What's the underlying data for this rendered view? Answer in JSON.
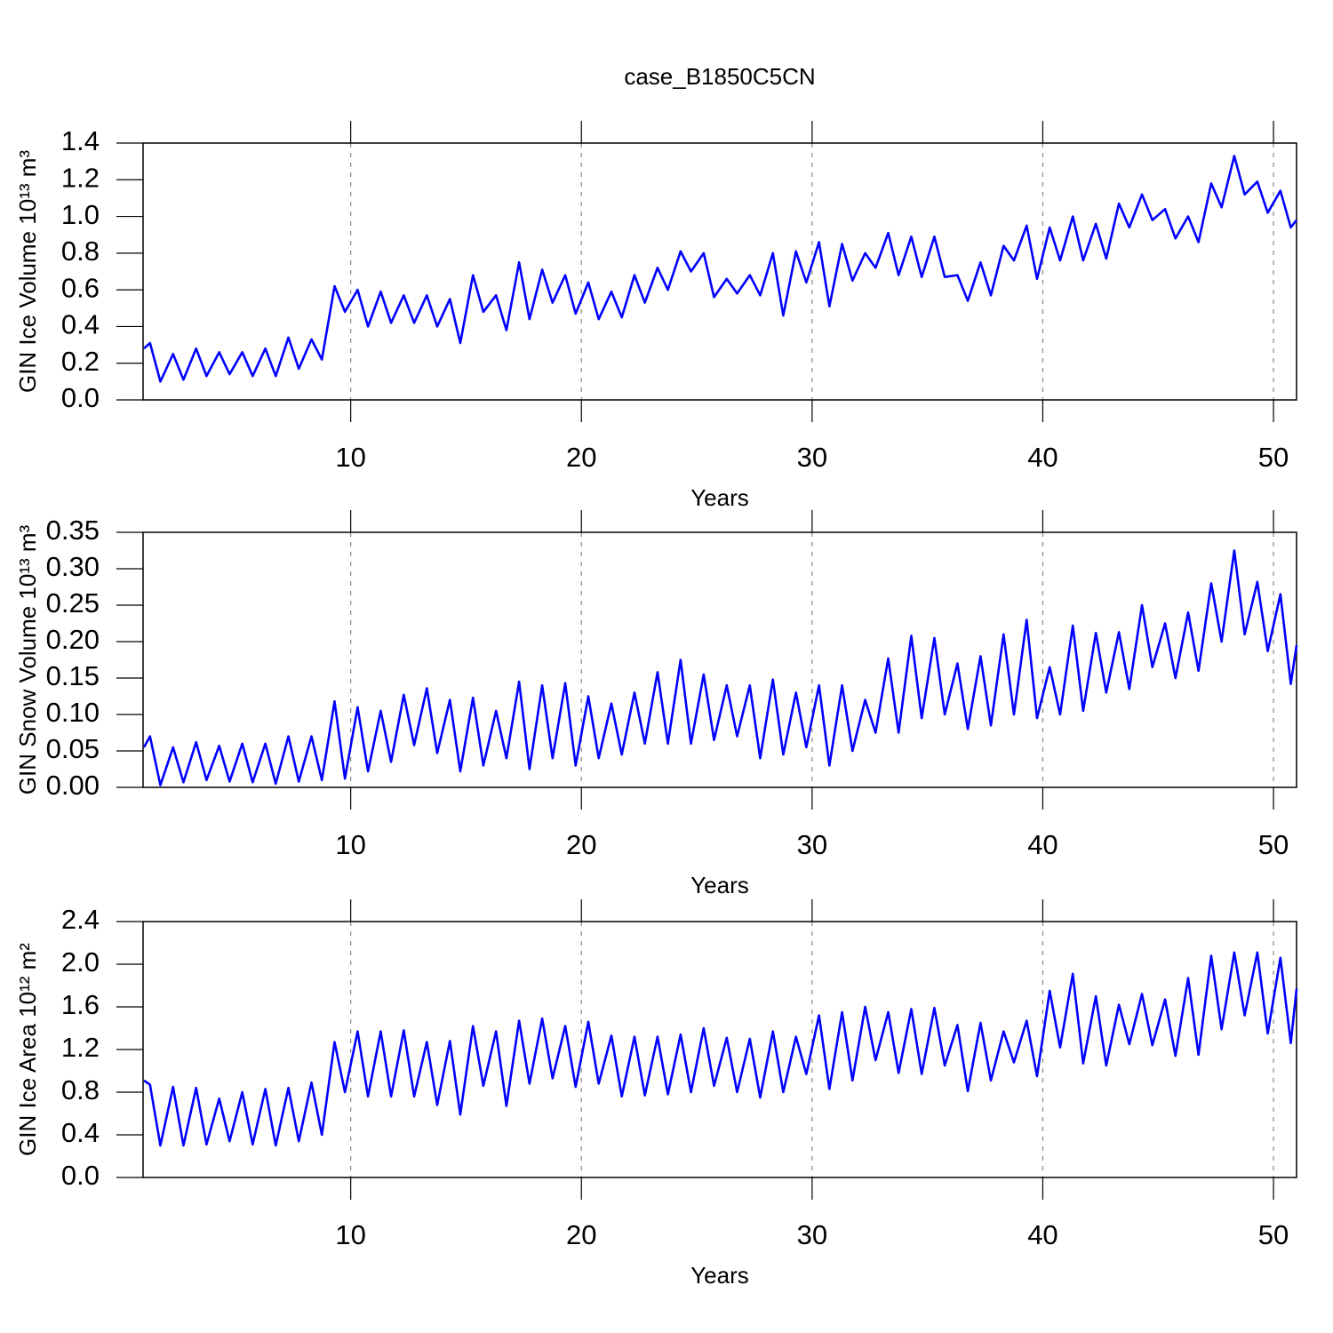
{
  "chart_data": [
    {
      "type": "line",
      "title": "case_B1850C5CN",
      "xlabel": "Years",
      "ylabel": "GIN Ice Volume 10¹³ m³",
      "grid": "x",
      "xlim": [
        1,
        51
      ],
      "xticks": [
        10,
        20,
        30,
        40,
        50
      ],
      "ylim": [
        0,
        1.4
      ],
      "yticks": [
        {
          "value": 0,
          "label": "0.0"
        },
        0.2,
        0.4,
        0.6,
        0.8,
        {
          "value": 1,
          "label": "1.0"
        },
        1.2,
        1.4
      ],
      "x": [
        1.04,
        1.3,
        1.75,
        2.3,
        2.75,
        3.3,
        3.75,
        4.3,
        4.75,
        5.3,
        5.75,
        6.3,
        6.75,
        7.3,
        7.75,
        8.3,
        8.75,
        9.3,
        9.75,
        10.3,
        10.75,
        11.3,
        11.75,
        12.3,
        12.75,
        13.3,
        13.75,
        14.3,
        14.75,
        15.3,
        15.75,
        16.3,
        16.75,
        17.3,
        17.75,
        18.3,
        18.75,
        19.3,
        19.75,
        20.3,
        20.75,
        21.3,
        21.75,
        22.3,
        22.75,
        23.3,
        23.75,
        24.3,
        24.75,
        25.3,
        25.75,
        26.3,
        26.75,
        27.3,
        27.75,
        28.3,
        28.75,
        29.3,
        29.75,
        30.3,
        30.75,
        31.3,
        31.75,
        32.3,
        32.75,
        33.3,
        33.75,
        34.3,
        34.75,
        35.3,
        35.75,
        36.3,
        36.75,
        37.3,
        37.75,
        38.3,
        38.75,
        39.3,
        39.75,
        40.3,
        40.75,
        41.3,
        41.75,
        42.3,
        42.75,
        43.3,
        43.75,
        44.3,
        44.75,
        45.3,
        45.75,
        46.3,
        46.75,
        47.3,
        47.75,
        48.3,
        48.75,
        49.3,
        49.75,
        50.3,
        50.75,
        51
      ],
      "series": [
        {
          "color": "#0000ff",
          "values": [
            0.28,
            0.31,
            0.1,
            0.25,
            0.11,
            0.28,
            0.13,
            0.26,
            0.14,
            0.26,
            0.13,
            0.28,
            0.13,
            0.34,
            0.17,
            0.33,
            0.22,
            0.62,
            0.48,
            0.6,
            0.4,
            0.59,
            0.42,
            0.57,
            0.42,
            0.57,
            0.4,
            0.55,
            0.31,
            0.68,
            0.48,
            0.57,
            0.38,
            0.75,
            0.44,
            0.71,
            0.53,
            0.68,
            0.47,
            0.64,
            0.44,
            0.59,
            0.45,
            0.68,
            0.53,
            0.72,
            0.6,
            0.81,
            0.7,
            0.8,
            0.56,
            0.66,
            0.58,
            0.68,
            0.57,
            0.8,
            0.46,
            0.81,
            0.64,
            0.86,
            0.51,
            0.85,
            0.65,
            0.8,
            0.72,
            0.91,
            0.68,
            0.89,
            0.67,
            0.89,
            0.67,
            0.68,
            0.54,
            0.75,
            0.57,
            0.84,
            0.76,
            0.95,
            0.66,
            0.94,
            0.76,
            1.0,
            0.76,
            0.96,
            0.77,
            1.07,
            0.94,
            1.12,
            0.98,
            1.04,
            0.88,
            1.0,
            0.86,
            1.18,
            1.05,
            1.33,
            1.12,
            1.19,
            1.02,
            1.14,
            0.94,
            0.98
          ]
        }
      ]
    },
    {
      "type": "line",
      "xlabel": "Years",
      "ylabel": "GIN Snow Volume 10¹³ m³",
      "grid": "x",
      "xlim": [
        1,
        51
      ],
      "xticks": [
        10,
        20,
        30,
        40,
        50
      ],
      "ylim": [
        0,
        0.35
      ],
      "yticks": [
        {
          "value": 0,
          "label": "0.00"
        },
        {
          "value": 0.05,
          "label": "0.05"
        },
        {
          "value": 0.1,
          "label": "0.10"
        },
        {
          "value": 0.15,
          "label": "0.15"
        },
        {
          "value": 0.2,
          "label": "0.20"
        },
        {
          "value": 0.25,
          "label": "0.25"
        },
        {
          "value": 0.3,
          "label": "0.30"
        },
        {
          "value": 0.35,
          "label": "0.35"
        }
      ],
      "x": [
        1.04,
        1.3,
        1.75,
        2.3,
        2.75,
        3.3,
        3.75,
        4.3,
        4.75,
        5.3,
        5.75,
        6.3,
        6.75,
        7.3,
        7.75,
        8.3,
        8.75,
        9.3,
        9.75,
        10.3,
        10.75,
        11.3,
        11.75,
        12.3,
        12.75,
        13.3,
        13.75,
        14.3,
        14.75,
        15.3,
        15.75,
        16.3,
        16.75,
        17.3,
        17.75,
        18.3,
        18.75,
        19.3,
        19.75,
        20.3,
        20.75,
        21.3,
        21.75,
        22.3,
        22.75,
        23.3,
        23.75,
        24.3,
        24.75,
        25.3,
        25.75,
        26.3,
        26.75,
        27.3,
        27.75,
        28.3,
        28.75,
        29.3,
        29.75,
        30.3,
        30.75,
        31.3,
        31.75,
        32.3,
        32.75,
        33.3,
        33.75,
        34.3,
        34.75,
        35.3,
        35.75,
        36.3,
        36.75,
        37.3,
        37.75,
        38.3,
        38.75,
        39.3,
        39.75,
        40.3,
        40.75,
        41.3,
        41.75,
        42.3,
        42.75,
        43.3,
        43.75,
        44.3,
        44.75,
        45.3,
        45.75,
        46.3,
        46.75,
        47.3,
        47.75,
        48.3,
        48.75,
        49.3,
        49.75,
        50.3,
        50.75,
        51
      ],
      "series": [
        {
          "color": "#0000ff",
          "values": [
            0.055,
            0.07,
            0.003,
            0.055,
            0.007,
            0.062,
            0.01,
            0.057,
            0.008,
            0.06,
            0.007,
            0.06,
            0.005,
            0.07,
            0.008,
            0.07,
            0.01,
            0.118,
            0.012,
            0.11,
            0.022,
            0.105,
            0.035,
            0.127,
            0.058,
            0.136,
            0.047,
            0.12,
            0.022,
            0.123,
            0.03,
            0.105,
            0.04,
            0.145,
            0.025,
            0.14,
            0.04,
            0.143,
            0.03,
            0.125,
            0.04,
            0.115,
            0.045,
            0.13,
            0.06,
            0.158,
            0.06,
            0.175,
            0.06,
            0.155,
            0.065,
            0.14,
            0.07,
            0.14,
            0.04,
            0.148,
            0.045,
            0.13,
            0.055,
            0.14,
            0.03,
            0.14,
            0.05,
            0.12,
            0.075,
            0.177,
            0.075,
            0.208,
            0.095,
            0.205,
            0.1,
            0.17,
            0.08,
            0.18,
            0.085,
            0.21,
            0.1,
            0.23,
            0.095,
            0.165,
            0.1,
            0.222,
            0.105,
            0.212,
            0.13,
            0.213,
            0.135,
            0.25,
            0.165,
            0.225,
            0.15,
            0.24,
            0.16,
            0.28,
            0.2,
            0.325,
            0.21,
            0.282,
            0.187,
            0.265,
            0.142,
            0.195
          ]
        }
      ]
    },
    {
      "type": "line",
      "xlabel": "Years",
      "ylabel": "GIN Ice Area 10¹² m²",
      "grid": "x",
      "xlim": [
        1,
        51
      ],
      "xticks": [
        10,
        20,
        30,
        40,
        50
      ],
      "ylim": [
        0,
        2.4
      ],
      "yticks": [
        {
          "value": 0,
          "label": "0.0"
        },
        0.4,
        0.8,
        1.2,
        1.6,
        {
          "value": 2,
          "label": "2.0"
        },
        2.4
      ],
      "x": [
        1.04,
        1.3,
        1.75,
        2.3,
        2.75,
        3.3,
        3.75,
        4.3,
        4.75,
        5.3,
        5.75,
        6.3,
        6.75,
        7.3,
        7.75,
        8.3,
        8.75,
        9.3,
        9.75,
        10.3,
        10.75,
        11.3,
        11.75,
        12.3,
        12.75,
        13.3,
        13.75,
        14.3,
        14.75,
        15.3,
        15.75,
        16.3,
        16.75,
        17.3,
        17.75,
        18.3,
        18.75,
        19.3,
        19.75,
        20.3,
        20.75,
        21.3,
        21.75,
        22.3,
        22.75,
        23.3,
        23.75,
        24.3,
        24.75,
        25.3,
        25.75,
        26.3,
        26.75,
        27.3,
        27.75,
        28.3,
        28.75,
        29.3,
        29.75,
        30.3,
        30.75,
        31.3,
        31.75,
        32.3,
        32.75,
        33.3,
        33.75,
        34.3,
        34.75,
        35.3,
        35.75,
        36.3,
        36.75,
        37.3,
        37.75,
        38.3,
        38.75,
        39.3,
        39.75,
        40.3,
        40.75,
        41.3,
        41.75,
        42.3,
        42.75,
        43.3,
        43.75,
        44.3,
        44.75,
        45.3,
        45.75,
        46.3,
        46.75,
        47.3,
        47.75,
        48.3,
        48.75,
        49.3,
        49.75,
        50.3,
        50.75,
        51
      ],
      "series": [
        {
          "color": "#0000ff",
          "values": [
            0.91,
            0.87,
            0.3,
            0.85,
            0.3,
            0.84,
            0.31,
            0.74,
            0.34,
            0.8,
            0.31,
            0.83,
            0.3,
            0.84,
            0.34,
            0.89,
            0.4,
            1.27,
            0.8,
            1.37,
            0.76,
            1.37,
            0.76,
            1.38,
            0.76,
            1.27,
            0.68,
            1.28,
            0.59,
            1.42,
            0.86,
            1.37,
            0.67,
            1.47,
            0.88,
            1.49,
            0.93,
            1.42,
            0.85,
            1.46,
            0.88,
            1.33,
            0.76,
            1.32,
            0.77,
            1.32,
            0.78,
            1.34,
            0.8,
            1.4,
            0.86,
            1.31,
            0.8,
            1.3,
            0.75,
            1.37,
            0.8,
            1.32,
            0.97,
            1.52,
            0.83,
            1.55,
            0.91,
            1.6,
            1.1,
            1.55,
            0.98,
            1.58,
            0.97,
            1.59,
            1.05,
            1.43,
            0.81,
            1.45,
            0.91,
            1.37,
            1.08,
            1.47,
            0.95,
            1.75,
            1.22,
            1.91,
            1.07,
            1.7,
            1.05,
            1.62,
            1.25,
            1.72,
            1.24,
            1.67,
            1.14,
            1.87,
            1.15,
            2.08,
            1.39,
            2.11,
            1.52,
            2.11,
            1.35,
            2.06,
            1.26,
            1.77
          ]
        }
      ]
    }
  ]
}
